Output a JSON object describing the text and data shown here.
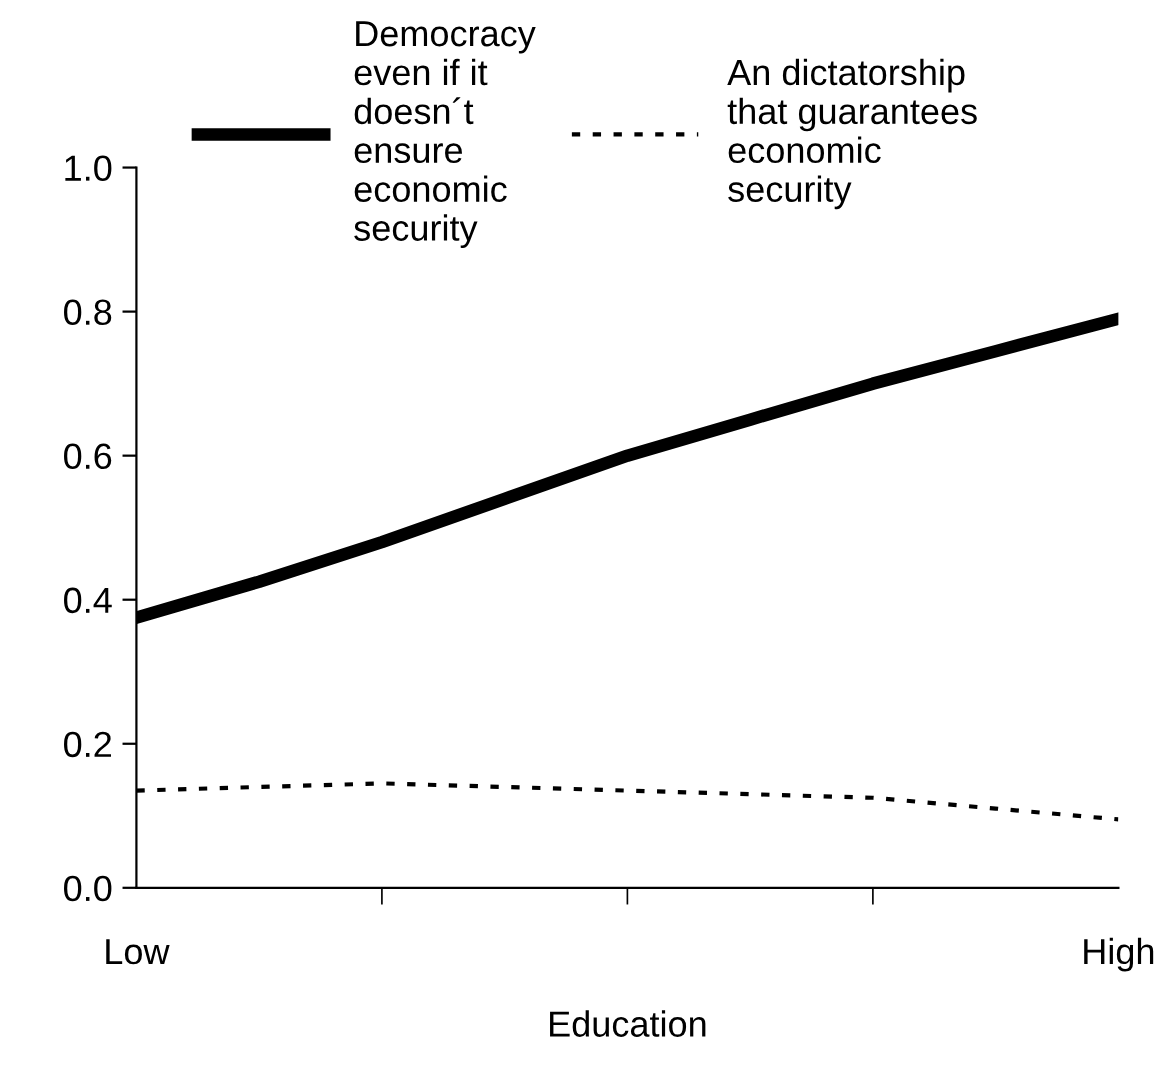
{
  "chart_data": {
    "type": "line",
    "xlabel": "Education",
    "categories": [
      "Low",
      null,
      null,
      null,
      null,
      null,
      null,
      null,
      "High"
    ],
    "series": [
      {
        "name": "Democracy\neven if it\ndoesn´t\nensure\neconomic\nsecurity",
        "color": "#000000",
        "line_style": "solid",
        "values": [
          0.375,
          0.425,
          0.48,
          0.54,
          0.6,
          0.65,
          0.7,
          0.745,
          0.79
        ]
      },
      {
        "name": "An dictatorship\nthat guarantees\neconomic\nsecurity",
        "color": "#000000",
        "line_style": "dotted",
        "values": [
          0.135,
          0.14,
          0.145,
          0.14,
          0.135,
          0.13,
          0.125,
          0.11,
          0.095
        ]
      }
    ],
    "ylim": [
      0,
      1.0
    ],
    "yticks": [
      {
        "value": 0,
        "label": "0.0"
      },
      {
        "value": 0.2,
        "label": "0.2"
      },
      {
        "value": 0.4,
        "label": "0.4"
      },
      {
        "value": 0.6,
        "label": "0.6"
      },
      {
        "value": 0.8,
        "label": "0.8"
      },
      {
        "value": 1.0,
        "label": "1.0"
      }
    ],
    "grid": false,
    "legend": "top",
    "marker": "none"
  }
}
